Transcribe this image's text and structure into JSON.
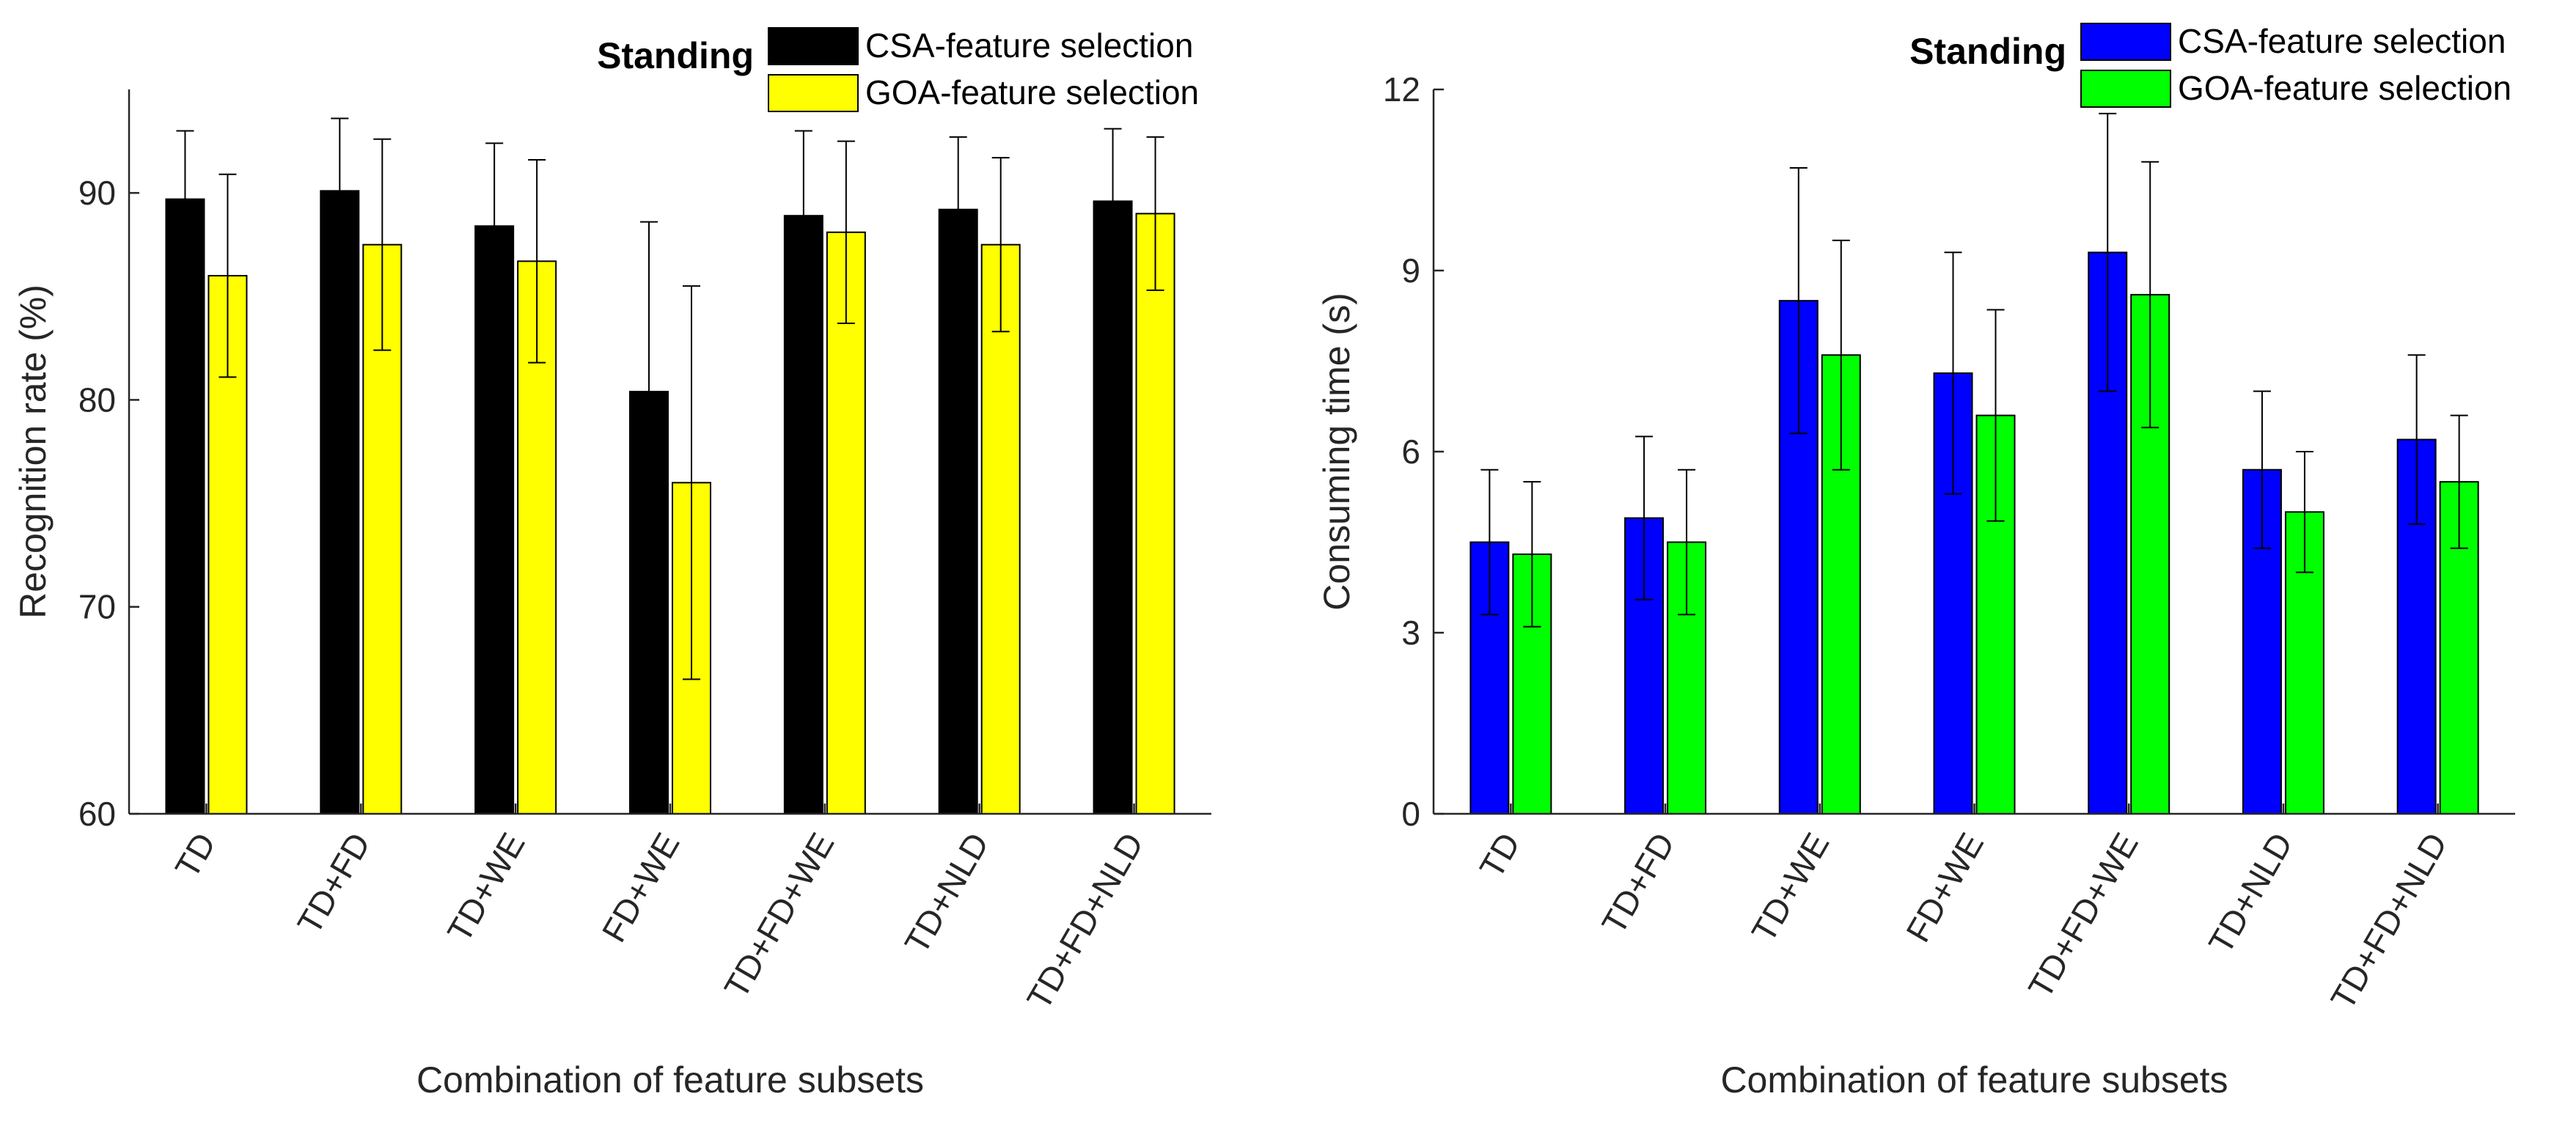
{
  "chart_data": [
    {
      "type": "bar",
      "categories": [
        "TD",
        "TD+FD",
        "TD+WE",
        "FD+WE",
        "TD+FD+WE",
        "TD+NLD",
        "TD+FD+NLD"
      ],
      "series": [
        {
          "name": "CSA-feature selection",
          "color": "#000000",
          "values": [
            89.7,
            90.1,
            88.4,
            80.4,
            88.9,
            89.2,
            89.6
          ],
          "error": [
            3.3,
            3.5,
            4.0,
            8.2,
            4.1,
            3.5,
            3.5
          ]
        },
        {
          "name": "GOA-feature selection",
          "color": "#ffff00",
          "values": [
            86.0,
            87.5,
            86.7,
            76.0,
            88.1,
            87.5,
            89.0
          ],
          "error": [
            4.9,
            5.1,
            4.9,
            9.5,
            4.4,
            4.2,
            3.7
          ]
        }
      ],
      "legend_title": "Standing",
      "xlabel": "Combination of feature subsets",
      "ylabel": "Recognition rate (%)",
      "ylim": [
        60,
        95
      ],
      "yticks": [
        60,
        70,
        80,
        90
      ],
      "grid": false,
      "legend_position": "top-right"
    },
    {
      "type": "bar",
      "categories": [
        "TD",
        "TD+FD",
        "TD+WE",
        "FD+WE",
        "TD+FD+WE",
        "TD+NLD",
        "TD+FD+NLD"
      ],
      "series": [
        {
          "name": "CSA-feature selection",
          "color": "#0000ff",
          "values": [
            4.5,
            4.9,
            8.5,
            7.3,
            9.3,
            5.7,
            6.2
          ],
          "error": [
            1.2,
            1.35,
            2.2,
            2.0,
            2.3,
            1.3,
            1.4
          ]
        },
        {
          "name": "GOA-feature selection",
          "color": "#00ff00",
          "values": [
            4.3,
            4.5,
            7.6,
            6.6,
            8.6,
            5.0,
            5.5
          ],
          "error": [
            1.2,
            1.2,
            1.9,
            1.75,
            2.2,
            1.0,
            1.1
          ]
        }
      ],
      "legend_title": "Standing",
      "xlabel": "Combination of feature subsets",
      "ylabel": "Consuming time (s)",
      "ylim": [
        0,
        12
      ],
      "yticks": [
        0,
        3,
        6,
        9,
        12
      ],
      "grid": false,
      "legend_position": "top-right"
    }
  ]
}
